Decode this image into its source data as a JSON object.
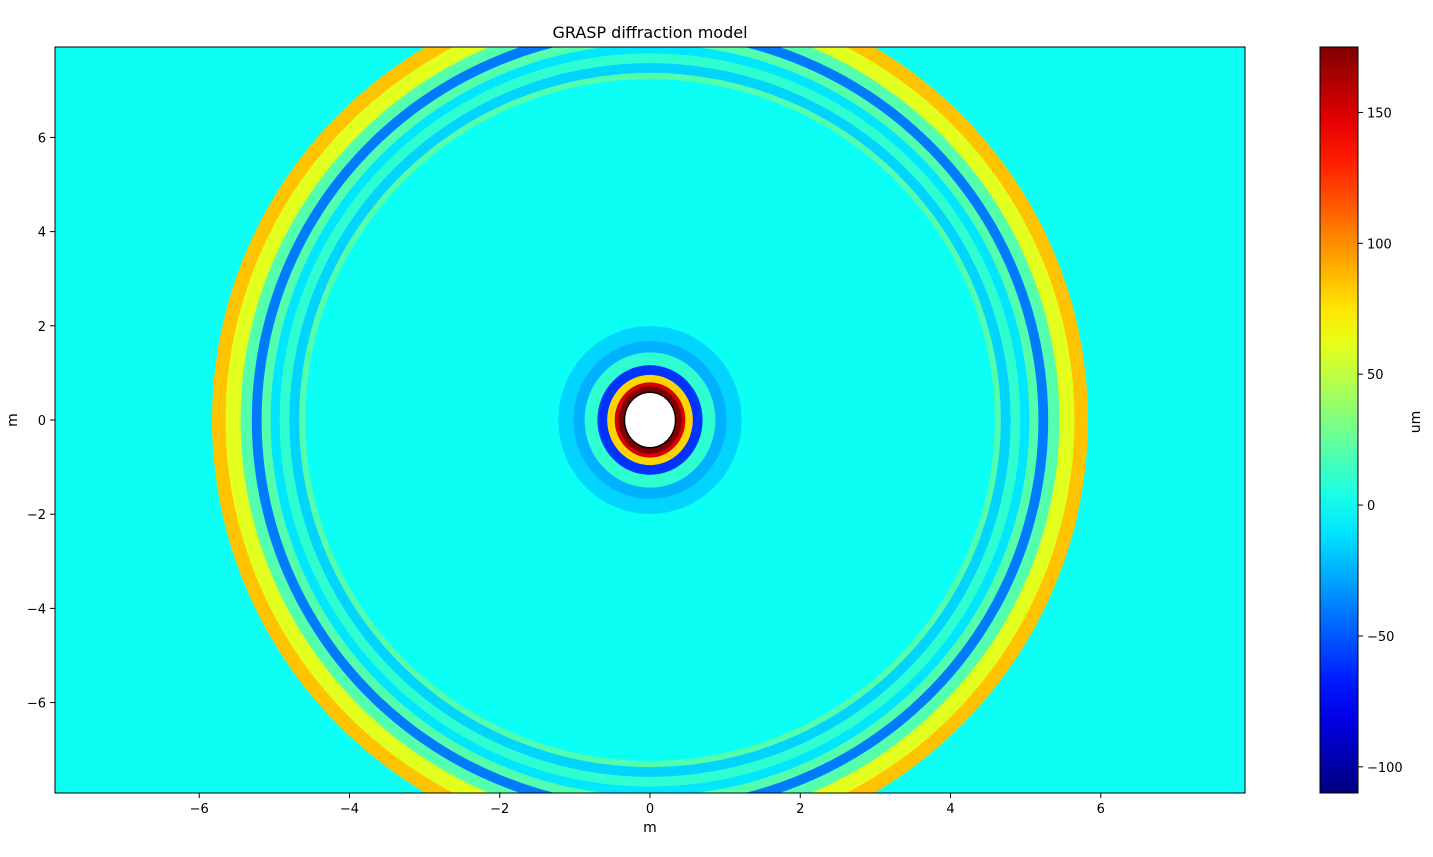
{
  "chart_data": {
    "type": "heatmap",
    "title": "GRASP diffraction model",
    "xlabel": "m",
    "ylabel": "m",
    "xlim": [
      -7.92,
      7.92
    ],
    "ylim": [
      -7.92,
      7.92
    ],
    "xticks": [
      -6,
      -4,
      -2,
      0,
      2,
      4,
      6
    ],
    "xtick_labels": [
      "−6",
      "−4",
      "−2",
      "0",
      "2",
      "4",
      "6"
    ],
    "yticks": [
      -6,
      -4,
      -2,
      0,
      2,
      4,
      6
    ],
    "ytick_labels": [
      "−6",
      "−4",
      "−2",
      "0",
      "2",
      "4",
      "6"
    ],
    "grid": false,
    "colormap": "jet",
    "colorbar": {
      "label": "um",
      "vmin": -110,
      "vmax": 175,
      "ticks": [
        -100,
        -50,
        0,
        50,
        100,
        150
      ],
      "tick_labels": [
        "−100",
        "−50",
        "0",
        "50",
        "100",
        "150"
      ]
    },
    "background_value": 0,
    "outer_rings": {
      "center": [
        0,
        0
      ],
      "semi_axis_x_m": 5.85,
      "semi_axis_y_m": 5.8,
      "profile": [
        {
          "offset_m": -0.02,
          "value": 85
        },
        {
          "offset_m": -0.2,
          "value": 60
        },
        {
          "offset_m": -0.4,
          "value": 20
        },
        {
          "offset_m": -0.55,
          "value": -40
        },
        {
          "offset_m": -0.68,
          "value": 20
        },
        {
          "offset_m": -0.8,
          "value": -10
        },
        {
          "offset_m": -0.92,
          "value": 10
        },
        {
          "offset_m": -1.05,
          "value": -15
        },
        {
          "offset_m": -1.18,
          "value": 20
        }
      ]
    },
    "inner_rings": {
      "center": [
        0,
        0
      ],
      "semi_axis_x_m": 0.42,
      "semi_axis_y_m": 0.45,
      "core_value": 175,
      "profile": [
        {
          "offset_m": 0.05,
          "value": 150
        },
        {
          "offset_m": 0.15,
          "value": 80
        },
        {
          "offset_m": 0.28,
          "value": -60
        },
        {
          "offset_m": 0.45,
          "value": 10
        },
        {
          "offset_m": 0.6,
          "value": -25
        },
        {
          "offset_m": 0.8,
          "value": -15
        }
      ]
    }
  }
}
